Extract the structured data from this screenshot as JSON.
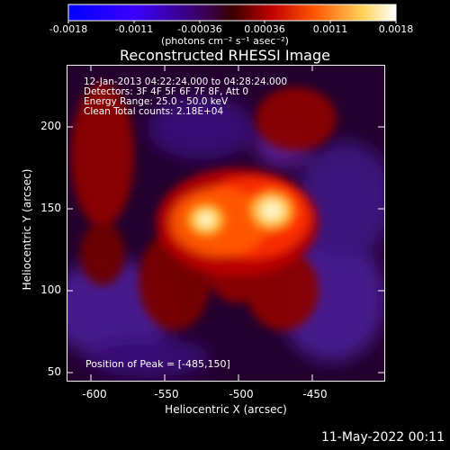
{
  "colorbar": {
    "tick_labels": [
      "-0.0018",
      "-0.0011",
      "-0.00036",
      "0.00036",
      "0.0011",
      "0.0018"
    ],
    "units_label": "(photons cm⁻² s⁻¹ asec⁻²)",
    "colors": [
      "#0000ff",
      "#2a00ff",
      "#2b007a",
      "#6a0000",
      "#ff2200",
      "#ff8800",
      "#ffe66a",
      "#ffffff"
    ]
  },
  "image": {
    "title": "Reconstructed RHESSI Image",
    "overlay_lines": [
      "12-Jan-2013 04:22:24.000 to 04:28:24.000",
      "Detectors: 3F 4F 5F 6F 7F 8F, Att 0",
      "Energy Range: 25.0 - 50.0 keV",
      "Clean    Total counts: 2.18E+04"
    ],
    "peak_text": "Position of Peak = [-485,150]"
  },
  "axes": {
    "x_label": "Heliocentric X (arcsec)",
    "y_label": "Heliocentric Y (arcsec)",
    "x_ticks": [
      "-600",
      "-550",
      "-500",
      "-450"
    ],
    "y_ticks": [
      "200",
      "150",
      "100",
      "50"
    ]
  },
  "footer": {
    "timestamp": "11-May-2022 00:11"
  }
}
